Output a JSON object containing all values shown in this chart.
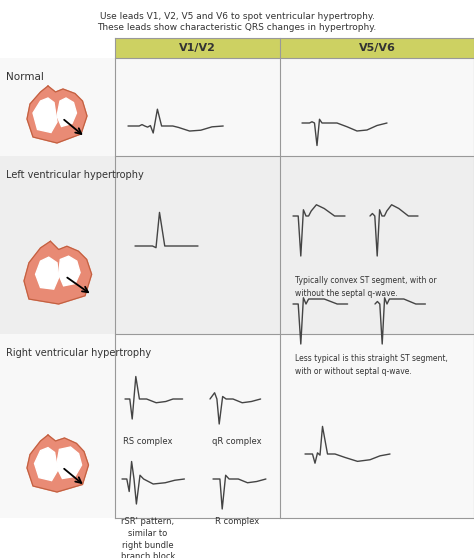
{
  "title_line1": "Use leads V1, V2, V5 and V6 to spot ventricular hypertrophy.",
  "title_line2": "These leads show characteristic QRS changes in hypertrophy.",
  "col_headers": [
    "V1/V2",
    "V5/V6"
  ],
  "row_labels": [
    "Normal",
    "Left ventricular hypertrophy",
    "Right ventricular hypertrophy"
  ],
  "header_bg": "#cdd162",
  "grid_color": "#999999",
  "text_color": "#333333",
  "ecg_color": "#444444",
  "heart_fill": "#e8826a",
  "heart_edge": "#c06040",
  "annotation1": "Typically convex ST segment, with or\nwithout the septal q-wave.",
  "annotation2": "Less typical is this straight ST segment,\nwith or without septal q-wave.",
  "annotation3": "RS complex",
  "annotation4": "qR complex",
  "annotation5": "rSR' pattern,\nsimilar to\nright bundle\nbranch block",
  "annotation6": "R complex",
  "fig_width": 4.74,
  "fig_height": 5.58,
  "dpi": 100
}
